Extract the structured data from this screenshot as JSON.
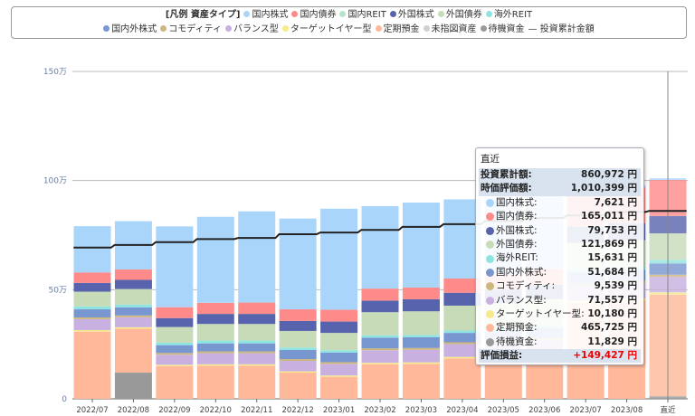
{
  "legend": {
    "title": "[凡例 資産タイプ]",
    "line_label": "投資累計金額"
  },
  "series": [
    {
      "name": "国内株式",
      "color": "#aad5fb"
    },
    {
      "name": "国内債券",
      "color": "#ff8a8a"
    },
    {
      "name": "国内REIT",
      "color": "#b9e2cb"
    },
    {
      "name": "外国株式",
      "color": "#5763ac"
    },
    {
      "name": "外国債券",
      "color": "#c8dbb9"
    },
    {
      "name": "海外REIT",
      "color": "#8ee4e0"
    },
    {
      "name": "国内外株式",
      "color": "#7896d0"
    },
    {
      "name": "コモディティ",
      "color": "#cdb77a"
    },
    {
      "name": "バランス型",
      "color": "#c8b0e0"
    },
    {
      "name": "ターゲットイヤー型",
      "color": "#f8e98a"
    },
    {
      "name": "定期預金",
      "color": "#ffb89a"
    },
    {
      "name": "未指図資産",
      "color": "#d0d0d0"
    },
    {
      "name": "待機資金",
      "color": "#999999"
    }
  ],
  "chart_data": {
    "type": "bar",
    "stacked": true,
    "unit": "万円",
    "ylim": [
      0,
      150
    ],
    "yticks": [
      "0",
      "50万",
      "100万",
      "150万"
    ],
    "ytick_values": [
      0,
      50,
      100,
      150
    ],
    "grid": true,
    "legend_position": "top",
    "categories": [
      "2022/07",
      "2022/08",
      "2022/09",
      "2022/10",
      "2022/11",
      "2022/12",
      "2023/01",
      "2023/02",
      "2023/03",
      "2023/04",
      "2023/05",
      "2023/06",
      "2023/07",
      "2023/08",
      "直近"
    ],
    "stack_values": {
      "待機資金": [
        0,
        12,
        0,
        0,
        0,
        0,
        0,
        0,
        0,
        0,
        0,
        0,
        0,
        0,
        1.18
      ],
      "未指図資産": [
        0,
        0,
        0,
        0,
        0,
        0,
        0,
        0,
        0,
        0,
        0,
        0,
        0,
        0,
        0
      ],
      "定期預金": [
        30.8,
        20.1,
        15,
        15.2,
        15.2,
        12,
        10.1,
        15.8,
        16,
        18.5,
        19,
        20,
        44,
        45,
        46.57
      ],
      "ターゲットイヤー型": [
        0.7,
        0.7,
        0.6,
        0.6,
        0.6,
        0.6,
        0.6,
        0.7,
        0.7,
        0.7,
        0.7,
        0.8,
        1,
        1,
        1.02
      ],
      "バランス型": [
        5,
        4.6,
        4.6,
        5.1,
        5.1,
        4.8,
        5.3,
        5.8,
        5.8,
        5.9,
        6,
        6.2,
        7,
        7.1,
        7.16
      ],
      "コモディティ": [
        0.8,
        0.8,
        0.8,
        0.8,
        0.8,
        0.8,
        0.8,
        0.8,
        0.8,
        0.8,
        0.8,
        0.9,
        0.9,
        0.9,
        0.95
      ],
      "国内外株式": [
        3.7,
        3.7,
        3.6,
        3.7,
        3.7,
        4.2,
        4.4,
        4.9,
        4.9,
        4.3,
        4.5,
        4.7,
        5,
        5.1,
        5.17
      ],
      "海外REIT": [
        1.3,
        1.3,
        1.1,
        1.3,
        1.3,
        1.1,
        1.1,
        1.1,
        1.1,
        1.1,
        1.2,
        1.3,
        1.5,
        1.5,
        1.56
      ],
      "外国債券": [
        6.8,
        7.1,
        7.2,
        7.6,
        7.6,
        7.6,
        7.9,
        10.6,
        10.8,
        11.4,
        11.6,
        11.8,
        12,
        12.1,
        12.19
      ],
      "外国株式": [
        4,
        4.2,
        4.1,
        4.6,
        4.6,
        4.6,
        5.2,
        5.3,
        5.5,
        5.9,
        6.2,
        6.5,
        7.5,
        7.8,
        7.98
      ],
      "国内REIT": [
        0,
        0,
        0,
        0,
        0,
        0,
        0,
        0,
        0,
        0,
        0,
        0,
        0,
        0,
        0
      ],
      "国内債券": [
        4.8,
        4.8,
        5,
        5.1,
        5.2,
        5.3,
        5.4,
        5.5,
        5.4,
        6.5,
        7,
        7.5,
        16,
        16.3,
        16.5
      ],
      "国内株式": [
        21.2,
        22.1,
        37,
        39.4,
        41.8,
        41.6,
        46.3,
        37.8,
        38.9,
        36.3,
        35,
        34,
        1.5,
        1,
        0.76
      ]
    },
    "line": {
      "name": "投資累計金額",
      "color": "#222222",
      "values": [
        69.3,
        70.5,
        71.8,
        73.2,
        73.7,
        75.4,
        76.2,
        77.4,
        78.8,
        80,
        81.5,
        82.8,
        84,
        85.6,
        86.1
      ]
    }
  },
  "tooltip": {
    "title": "直近",
    "invested_label": "投資累計額:",
    "invested_value": "860,972 円",
    "market_label": "時価評価額:",
    "market_value": "1,010,399 円",
    "items": [
      {
        "label": "国内株式:",
        "value": "7,621 円",
        "color": "#aad5fb"
      },
      {
        "label": "国内債券:",
        "value": "165,011 円",
        "color": "#ff8a8a"
      },
      {
        "label": "外国株式:",
        "value": "79,753 円",
        "color": "#5763ac"
      },
      {
        "label": "外国債券:",
        "value": "121,869 円",
        "color": "#c8dbb9"
      },
      {
        "label": "海外REIT:",
        "value": "15,631 円",
        "color": "#8ee4e0"
      },
      {
        "label": "国内外株式:",
        "value": "51,684 円",
        "color": "#7896d0"
      },
      {
        "label": "コモディティ:",
        "value": "9,539 円",
        "color": "#cdb77a"
      },
      {
        "label": "バランス型:",
        "value": "71,557 円",
        "color": "#c8b0e0"
      },
      {
        "label": "ターゲットイヤー型:",
        "value": "10,180 円",
        "color": "#f8e98a"
      },
      {
        "label": "定期預金:",
        "value": "465,725 円",
        "color": "#ffb89a"
      },
      {
        "label": "待機資金:",
        "value": "11,829 円",
        "color": "#999999"
      }
    ],
    "pl_label": "評価損益:",
    "pl_value": "+149,427 円",
    "pl_color": "#ee0000"
  }
}
